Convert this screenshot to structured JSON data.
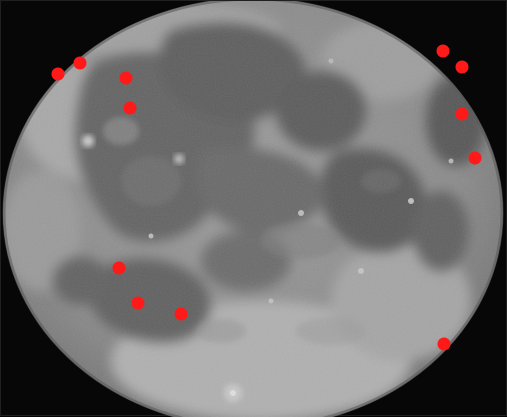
{
  "image": {
    "subject": "moon-surface",
    "background_color": "#070707",
    "moon_base_color": "#8d8d8d",
    "highland_color": "#a9a9a9",
    "maria_color": "#5b5b5b",
    "marker_color": "#ff1a1a"
  },
  "markers": [
    {
      "label": "marker-1"
    },
    {
      "label": "marker-2"
    },
    {
      "label": "marker-3"
    },
    {
      "label": "marker-4"
    },
    {
      "label": "marker-5"
    },
    {
      "label": "marker-6"
    },
    {
      "label": "marker-7"
    },
    {
      "label": "marker-8"
    },
    {
      "label": "marker-9"
    },
    {
      "label": "marker-10"
    },
    {
      "label": "marker-11"
    },
    {
      "label": "marker-12"
    }
  ]
}
